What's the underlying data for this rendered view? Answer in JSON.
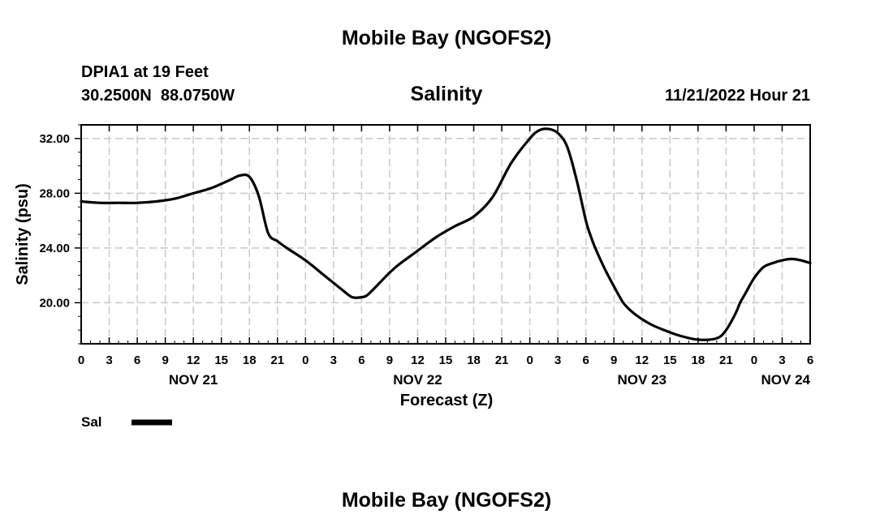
{
  "header": {
    "title": "Mobile Bay (NGOFS2)",
    "station": "DPIA1 at 19 Feet",
    "coords": "30.2500N  88.0750W",
    "variable": "Salinity",
    "datetime": "11/21/2022 Hour 21"
  },
  "footer": {
    "title": "Mobile Bay (NGOFS2)"
  },
  "legend": {
    "label": "Sal",
    "color": "#000000"
  },
  "chart_data": {
    "type": "line",
    "ylabel": "Salinity (psu)",
    "xlabel": "Forecast (Z)",
    "ylim": [
      17.0,
      33.0
    ],
    "xlim": [
      0,
      78
    ],
    "x_units": "hours since NOV 21 00Z",
    "grid": true,
    "yticks": [
      20.0,
      24.0,
      28.0,
      32.0
    ],
    "ytick_labels": [
      "20.00",
      "24.00",
      "28.00",
      "32.00"
    ],
    "xticks": [
      0,
      3,
      6,
      9,
      12,
      15,
      18,
      21,
      24,
      27,
      30,
      33,
      36,
      39,
      42,
      45,
      48,
      51,
      54,
      57,
      60,
      63,
      66,
      69,
      72,
      75,
      78
    ],
    "xtick_labels": [
      "0",
      "3",
      "6",
      "9",
      "12",
      "15",
      "18",
      "21",
      "0",
      "3",
      "6",
      "9",
      "12",
      "15",
      "18",
      "21",
      "0",
      "3",
      "6",
      "9",
      "12",
      "15",
      "18",
      "21",
      "0",
      "3",
      "6"
    ],
    "date_labels": [
      {
        "x": 12,
        "label": "NOV 21"
      },
      {
        "x": 36,
        "label": "NOV 22"
      },
      {
        "x": 60,
        "label": "NOV 23"
      },
      {
        "x": 78,
        "label": "NOV 24"
      }
    ],
    "series": [
      {
        "name": "Sal",
        "color": "#000000",
        "x": [
          0,
          2,
          4,
          6,
          8,
          10,
          12,
          14,
          16,
          17,
          18,
          19,
          20,
          21,
          22,
          24,
          26,
          28,
          29,
          30,
          30.5,
          31,
          32,
          33,
          34,
          35,
          36,
          38,
          40,
          42,
          44,
          46,
          48,
          49,
          50,
          51,
          52,
          53,
          54,
          54.5,
          55,
          56,
          57,
          58,
          59,
          60,
          61,
          62,
          64,
          66,
          68,
          69,
          70,
          70.5,
          71,
          72,
          73,
          74,
          75,
          76,
          77,
          78
        ],
        "y": [
          27.4,
          27.3,
          27.3,
          27.3,
          27.4,
          27.6,
          28.0,
          28.4,
          29.0,
          29.3,
          29.2,
          27.8,
          25.1,
          24.5,
          24.0,
          23.1,
          22.0,
          20.9,
          20.4,
          20.4,
          20.5,
          20.8,
          21.5,
          22.2,
          22.8,
          23.3,
          23.8,
          24.8,
          25.6,
          26.3,
          27.7,
          30.2,
          32.0,
          32.6,
          32.7,
          32.4,
          31.4,
          29.0,
          26.0,
          24.9,
          24.0,
          22.5,
          21.2,
          20.0,
          19.3,
          18.8,
          18.4,
          18.1,
          17.6,
          17.3,
          17.4,
          18.0,
          19.2,
          20.0,
          20.6,
          21.8,
          22.6,
          22.9,
          23.1,
          23.2,
          23.1,
          22.9
        ]
      }
    ]
  }
}
